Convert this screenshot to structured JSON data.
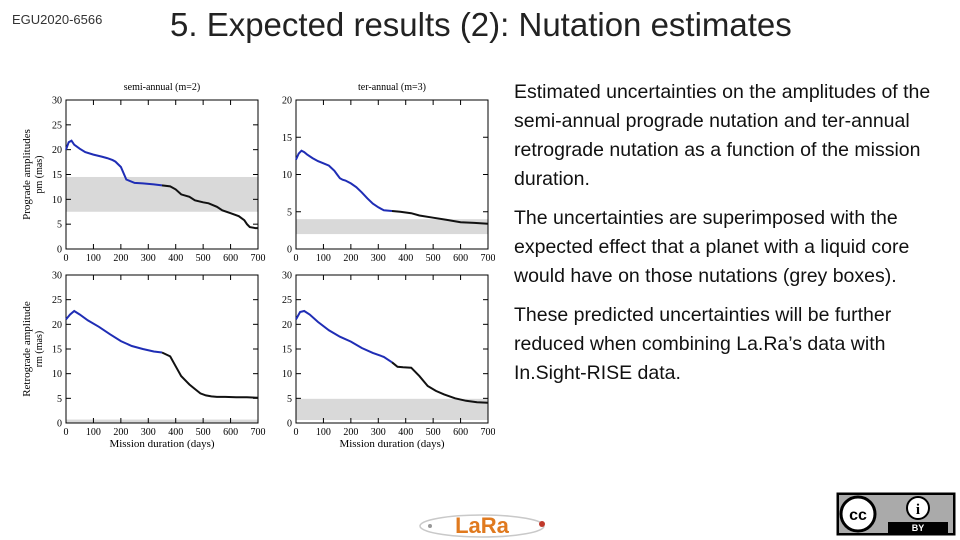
{
  "slide": {
    "tag": "EGU2020-6566",
    "title": "5. Expected results (2): Nutation estimates",
    "bullets": [
      "Estimated uncertainties on the amplitudes of the semi-annual prograde nutation and ter-annual retrograde nutation as a function of the mission duration.",
      "The uncertainties are superimposed with the expected effect that a planet with a liquid core would have on those nutations (grey boxes).",
      "These predicted uncertainties will be further reduced when combining La.Ra’s data with In.Sight-RISE data."
    ],
    "logo_text": "LaRa",
    "license_labels": [
      "cc",
      "i",
      "BY"
    ]
  },
  "colors": {
    "curve_early": "#1f2db5",
    "curve_late": "#111111",
    "grey_box": "#d9d9d9"
  },
  "chart_data": [
    {
      "type": "line",
      "title": "semi-annual (m=2)",
      "ylabel": "Prograde amplitudes",
      "ylabel_sub": "pm (mas)",
      "xlim": [
        0,
        700
      ],
      "ylim": [
        0,
        30
      ],
      "xticks": [
        0,
        100,
        200,
        300,
        400,
        500,
        600,
        700
      ],
      "yticks": [
        0,
        5,
        10,
        15,
        20,
        25,
        30
      ],
      "grey_box": [
        7.5,
        14.5
      ],
      "split_x": 350,
      "x": [
        0,
        10,
        20,
        30,
        50,
        70,
        100,
        130,
        150,
        160,
        170,
        180,
        200,
        220,
        250,
        280,
        300,
        320,
        350,
        380,
        400,
        420,
        450,
        470,
        500,
        520,
        550,
        570,
        600,
        630,
        650,
        660,
        670,
        690,
        700
      ],
      "y": [
        20,
        21.5,
        21.8,
        21,
        20.2,
        19.5,
        19,
        18.6,
        18.3,
        18.1,
        17.9,
        17.6,
        16.5,
        14,
        13.3,
        13.2,
        13.1,
        13,
        12.8,
        12.6,
        12,
        11,
        10.5,
        9.8,
        9.4,
        9.2,
        8.5,
        7.8,
        7.2,
        6.6,
        5.8,
        5,
        4.4,
        4.2,
        4.2
      ]
    },
    {
      "type": "line",
      "title": "ter-annual (m=3)",
      "xlim": [
        0,
        700
      ],
      "ylim": [
        0,
        20
      ],
      "xticks": [
        0,
        100,
        200,
        300,
        400,
        500,
        600,
        700
      ],
      "yticks": [
        0,
        5,
        10,
        15,
        20
      ],
      "grey_box": [
        2,
        4
      ],
      "split_x": 350,
      "x": [
        0,
        10,
        20,
        30,
        40,
        60,
        80,
        100,
        120,
        140,
        150,
        160,
        170,
        180,
        200,
        220,
        240,
        260,
        280,
        300,
        320,
        350,
        380,
        420,
        450,
        500,
        550,
        600,
        650,
        700
      ],
      "y": [
        12,
        12.8,
        13.2,
        13,
        12.7,
        12.2,
        11.8,
        11.5,
        11.2,
        10.5,
        10,
        9.5,
        9.3,
        9.2,
        8.8,
        8.3,
        7.6,
        6.8,
        6.1,
        5.6,
        5.2,
        5.1,
        5,
        4.8,
        4.5,
        4.2,
        3.9,
        3.6,
        3.5,
        3.4
      ]
    },
    {
      "type": "line",
      "ylabel": "Retrograde amplitude",
      "ylabel_sub": "rm (mas)",
      "xlabel": "Mission duration (days)",
      "xlim": [
        0,
        700
      ],
      "ylim": [
        0,
        30
      ],
      "xticks": [
        0,
        100,
        200,
        300,
        400,
        500,
        600,
        700
      ],
      "yticks": [
        0,
        5,
        10,
        15,
        20,
        25,
        30
      ],
      "grey_box": [
        0,
        0.7
      ],
      "split_x": 350,
      "x": [
        0,
        15,
        30,
        50,
        80,
        120,
        160,
        200,
        240,
        280,
        320,
        350,
        380,
        400,
        420,
        450,
        470,
        490,
        510,
        530,
        550,
        580,
        620,
        660,
        700
      ],
      "y": [
        21,
        22,
        22.7,
        22,
        20.8,
        19.5,
        18,
        16.6,
        15.6,
        15,
        14.5,
        14.3,
        13.5,
        11.5,
        9.5,
        7.8,
        6.9,
        6,
        5.6,
        5.4,
        5.3,
        5.3,
        5.2,
        5.2,
        5.1
      ]
    },
    {
      "type": "line",
      "xlabel": "Mission duration (days)",
      "xlim": [
        0,
        700
      ],
      "ylim": [
        0,
        30
      ],
      "xticks": [
        0,
        100,
        200,
        300,
        400,
        500,
        600,
        700
      ],
      "yticks": [
        0,
        5,
        10,
        15,
        20,
        25,
        30
      ],
      "grey_box": [
        0.6,
        4.9
      ],
      "split_x": 350,
      "x": [
        0,
        15,
        30,
        50,
        80,
        120,
        160,
        200,
        240,
        280,
        320,
        350,
        370,
        390,
        420,
        450,
        480,
        510,
        540,
        580,
        620,
        660,
        700
      ],
      "y": [
        21,
        22.5,
        22.7,
        22,
        20.5,
        18.8,
        17.5,
        16.5,
        15.2,
        14.2,
        13.4,
        12.3,
        11.4,
        11.3,
        11.2,
        9.5,
        7.5,
        6.5,
        5.8,
        5,
        4.5,
        4.2,
        4.1
      ]
    }
  ]
}
